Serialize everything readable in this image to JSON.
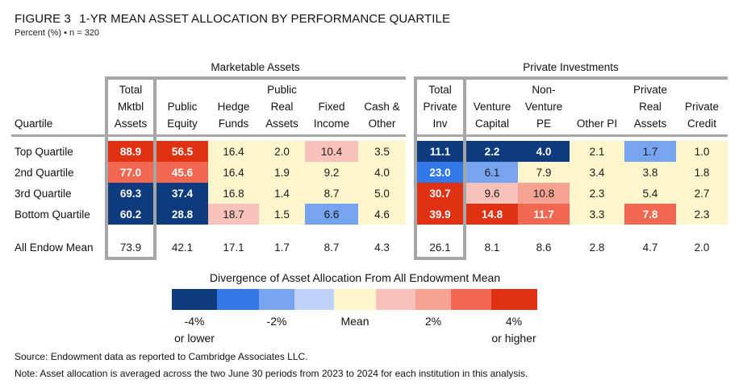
{
  "header": {
    "figure_label": "FIGURE 3",
    "title": "1-YR MEAN ASSET ALLOCATION BY PERFORMANCE QUARTILE",
    "subtitle": "Percent (%) • n = 320"
  },
  "chart_data": {
    "type": "heatmap",
    "title": "1-YR MEAN ASSET ALLOCATION BY PERFORMANCE QUARTILE",
    "units": "Percent (%)",
    "n": 320,
    "row_header": "Quartile",
    "groups": [
      {
        "name": "Marketable Assets",
        "columns": [
          "Total Mktbl Assets",
          "Public Equity",
          "Hedge Funds",
          "Public Real Assets",
          "Fixed Income",
          "Cash & Other"
        ]
      },
      {
        "name": "Private Investments",
        "columns": [
          "Total Private Inv",
          "Venture Capital",
          "Non-Venture PE",
          "Other PI",
          "Private Real Assets",
          "Private Credit"
        ]
      }
    ],
    "column_headers": [
      [
        "Total",
        "Mktbl",
        "Assets"
      ],
      [
        "",
        "Public",
        "Equity"
      ],
      [
        "",
        "Hedge",
        "Funds"
      ],
      [
        "Public",
        "Real",
        "Assets"
      ],
      [
        "",
        "Fixed",
        "Income"
      ],
      [
        "",
        "Cash &",
        "Other"
      ],
      [
        "Total",
        "Private",
        "Inv"
      ],
      [
        "",
        "Venture",
        "Capital"
      ],
      [
        "Non-",
        "Venture",
        "PE"
      ],
      [
        "",
        "",
        "Other PI"
      ],
      [
        "Private",
        "Real",
        "Assets"
      ],
      [
        "",
        "Private",
        "Credit"
      ]
    ],
    "rows": [
      {
        "label": "Top Quartile",
        "values": [
          88.9,
          56.5,
          16.4,
          2.0,
          10.4,
          3.5,
          11.1,
          2.2,
          4.0,
          2.1,
          1.7,
          1.0
        ],
        "divergence_bins": [
          4,
          4,
          0,
          0,
          1,
          0,
          -4,
          -4,
          -4,
          0,
          -2,
          0
        ]
      },
      {
        "label": "2nd Quartile",
        "values": [
          77.0,
          45.6,
          16.4,
          1.9,
          9.2,
          4.0,
          23.0,
          6.1,
          7.9,
          3.4,
          3.8,
          1.8
        ],
        "divergence_bins": [
          3,
          3,
          0,
          0,
          0,
          0,
          -3,
          -2,
          0,
          0,
          0,
          0
        ]
      },
      {
        "label": "3rd Quartile",
        "values": [
          69.3,
          37.4,
          16.8,
          1.4,
          8.7,
          5.0,
          30.7,
          9.6,
          10.8,
          2.3,
          5.4,
          2.7
        ],
        "divergence_bins": [
          -4,
          -4,
          0,
          0,
          0,
          0,
          4,
          1,
          2,
          0,
          0,
          0
        ]
      },
      {
        "label": "Bottom Quartile",
        "values": [
          60.2,
          28.8,
          18.7,
          1.5,
          6.6,
          4.6,
          39.9,
          14.8,
          11.7,
          3.3,
          7.8,
          2.3
        ],
        "divergence_bins": [
          -4,
          -4,
          1,
          0,
          -2,
          0,
          4,
          4,
          3,
          0,
          3,
          0
        ]
      }
    ],
    "mean_row": {
      "label": "All Endow Mean",
      "values": [
        73.9,
        42.1,
        17.1,
        1.7,
        8.7,
        4.3,
        26.1,
        8.1,
        8.6,
        2.8,
        4.7,
        2.0
      ]
    },
    "legend": {
      "title": "Divergence of Asset Allocation From All Endowment Mean",
      "bins": [
        -4,
        -3,
        -2,
        -1,
        0,
        1,
        2,
        3,
        4
      ],
      "colors": [
        "#0e3a7e",
        "#3278e6",
        "#76a4ee",
        "#bed3f7",
        "#fdf5cb",
        "#f8c2bb",
        "#f5a293",
        "#f26751",
        "#e03112"
      ],
      "ticks": [
        {
          "label": "-4%",
          "sub": "or lower"
        },
        {
          "label": "-2%",
          "sub": ""
        },
        {
          "label": "Mean",
          "sub": ""
        },
        {
          "label": "2%",
          "sub": ""
        },
        {
          "label": "4%",
          "sub": "or higher"
        }
      ]
    }
  },
  "footer": {
    "source": "Source: Endowment data as reported to Cambridge Associates LLC.",
    "note": "Note: Asset allocation is averaged across the two June 30 periods from 2023 to 2024 for each institution in this analysis."
  }
}
